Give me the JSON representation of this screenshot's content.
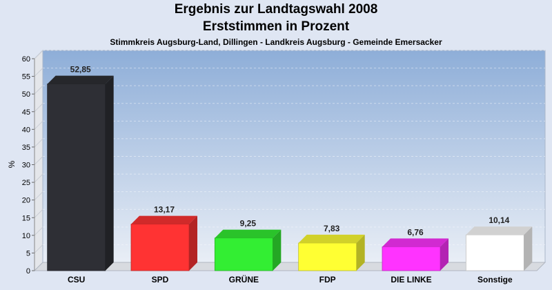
{
  "chart_data": {
    "type": "bar",
    "title": "Ergebnis zur Landtagswahl 2008",
    "subtitle": "Erststimmen in Prozent",
    "caption": "Stimmkreis Augsburg-Land, Dillingen - Landkreis Augsburg - Gemeinde Emersacker",
    "ylabel": "%",
    "ylim": [
      0,
      60
    ],
    "yticks": [
      0,
      5,
      10,
      15,
      20,
      25,
      30,
      35,
      40,
      45,
      50,
      55,
      60
    ],
    "categories": [
      "CSU",
      "SPD",
      "GRÜNE",
      "FDP",
      "DIE LINKE",
      "Sonstige"
    ],
    "values": [
      52.85,
      13.17,
      9.25,
      7.83,
      6.76,
      10.14
    ],
    "value_labels": [
      "52,85",
      "13,17",
      "9,25",
      "7,83",
      "6,76",
      "10,14"
    ],
    "colors": [
      "#2e2f35",
      "#ff3333",
      "#33ee33",
      "#ffff33",
      "#ff33ff",
      "#ffffff"
    ],
    "grid": true,
    "legend": "none"
  }
}
